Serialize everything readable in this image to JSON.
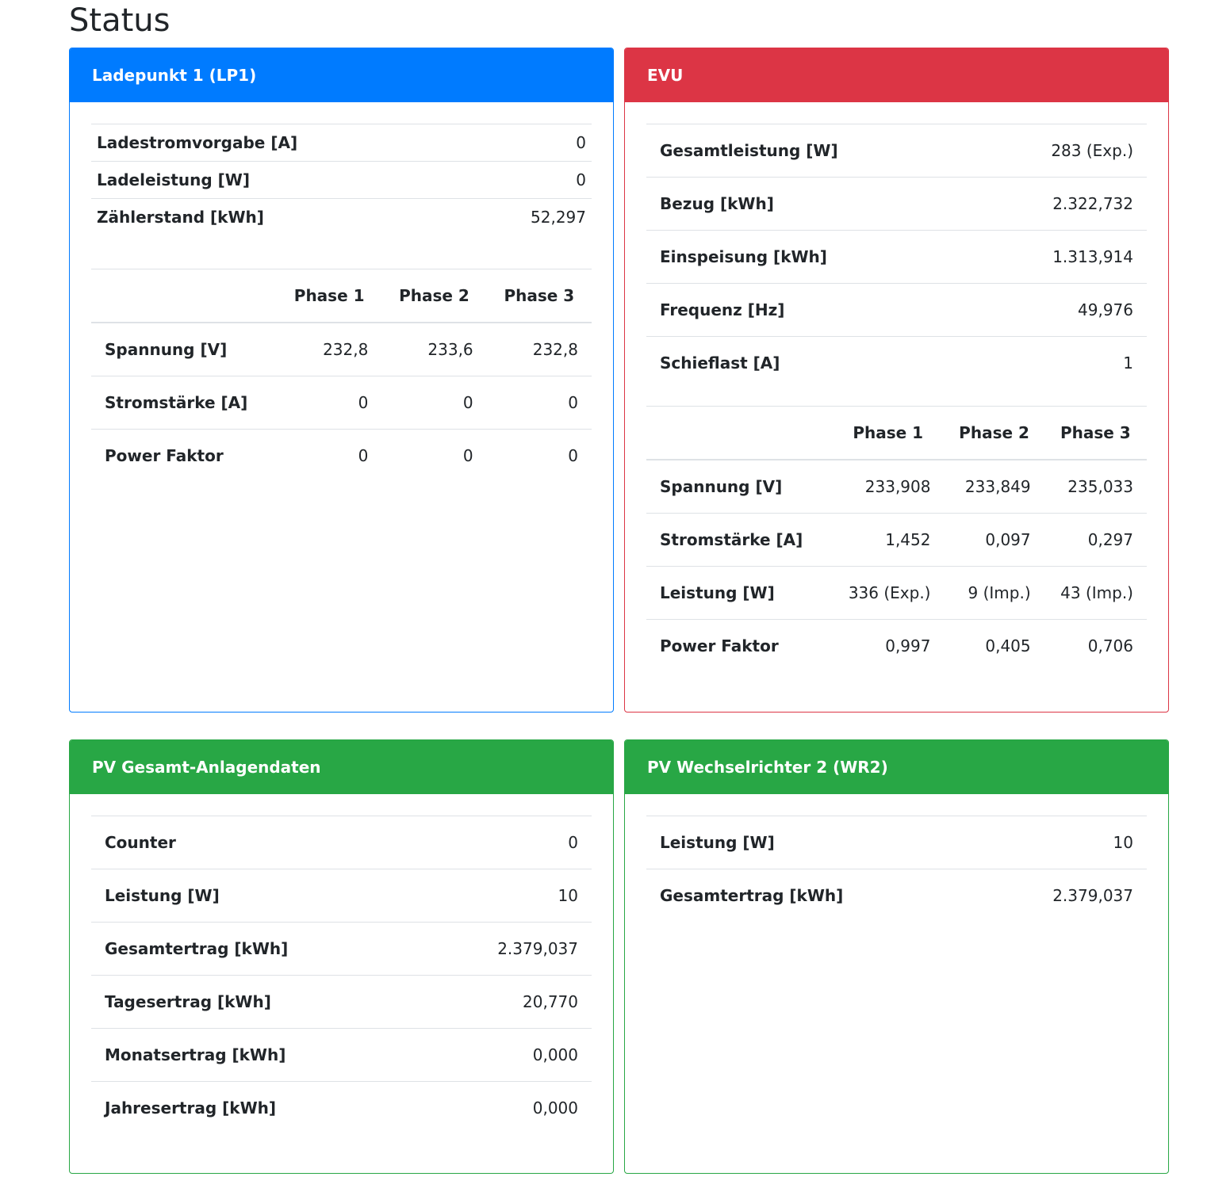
{
  "page": {
    "title": "Status"
  },
  "colors": {
    "primary": "#007bff",
    "danger": "#dc3545",
    "success": "#28a745"
  },
  "lp1": {
    "title": "Ladepunkt 1 (LP1)",
    "summary": [
      {
        "label": "Ladestromvorgabe [A]",
        "value": "0"
      },
      {
        "label": "Ladeleistung [W]",
        "value": "0"
      },
      {
        "label": "Zählerstand [kWh]",
        "value": "52,297"
      }
    ],
    "phase_headers": [
      "Phase 1",
      "Phase 2",
      "Phase 3"
    ],
    "phases": [
      {
        "label": "Spannung [V]",
        "values": [
          "232,8",
          "233,6",
          "232,8"
        ]
      },
      {
        "label": "Stromstärke [A]",
        "values": [
          "0",
          "0",
          "0"
        ]
      },
      {
        "label": "Power Faktor",
        "values": [
          "0",
          "0",
          "0"
        ]
      }
    ]
  },
  "evu": {
    "title": "EVU",
    "summary": [
      {
        "label": "Gesamtleistung [W]",
        "value": "283 (Exp.)"
      },
      {
        "label": "Bezug [kWh]",
        "value": "2.322,732"
      },
      {
        "label": "Einspeisung [kWh]",
        "value": "1.313,914"
      },
      {
        "label": "Frequenz [Hz]",
        "value": "49,976"
      },
      {
        "label": "Schieflast [A]",
        "value": "1"
      }
    ],
    "phase_headers": [
      "Phase 1",
      "Phase 2",
      "Phase 3"
    ],
    "phases": [
      {
        "label": "Spannung [V]",
        "values": [
          "233,908",
          "233,849",
          "235,033"
        ]
      },
      {
        "label": "Stromstärke [A]",
        "values": [
          "1,452",
          "0,097",
          "0,297"
        ]
      },
      {
        "label": "Leistung [W]",
        "values": [
          "336 (Exp.)",
          "9 (Imp.)",
          "43 (Imp.)"
        ]
      },
      {
        "label": "Power Faktor",
        "values": [
          "0,997",
          "0,405",
          "0,706"
        ]
      }
    ]
  },
  "pv_total": {
    "title": "PV Gesamt-Anlagendaten",
    "rows": [
      {
        "label": "Counter",
        "value": "0"
      },
      {
        "label": "Leistung [W]",
        "value": "10"
      },
      {
        "label": "Gesamtertrag [kWh]",
        "value": "2.379,037"
      },
      {
        "label": "Tagesertrag [kWh]",
        "value": "20,770"
      },
      {
        "label": "Monatsertrag [kWh]",
        "value": "0,000"
      },
      {
        "label": "Jahresertrag [kWh]",
        "value": "0,000"
      }
    ]
  },
  "pv_wr2": {
    "title": "PV Wechselrichter 2 (WR2)",
    "rows": [
      {
        "label": "Leistung [W]",
        "value": "10"
      },
      {
        "label": "Gesamtertrag [kWh]",
        "value": "2.379,037"
      }
    ]
  }
}
